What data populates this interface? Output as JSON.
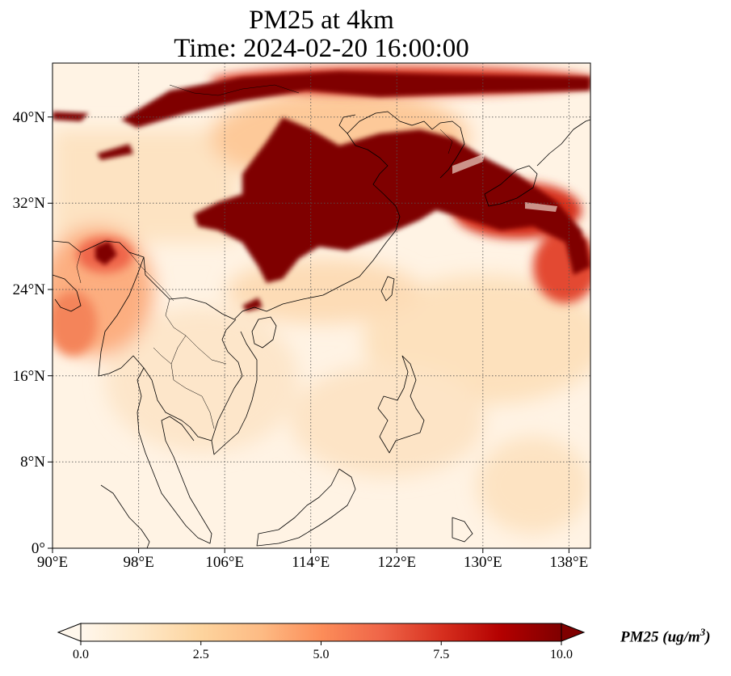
{
  "title": {
    "line1": "PM25 at 4km",
    "line2": "Time: 2024-02-20 16:00:00"
  },
  "map": {
    "lon_range": [
      90,
      140
    ],
    "lat_range": [
      0,
      45
    ],
    "lon_ticks": [
      "90°E",
      "98°E",
      "106°E",
      "114°E",
      "122°E",
      "130°E",
      "138°E"
    ],
    "lat_ticks": [
      "0°",
      "8°N",
      "16°N",
      "24°N",
      "32°N",
      "40°N"
    ],
    "gridlines": true,
    "colormap": "OrRd"
  },
  "colorbar": {
    "label": "PM25 (ug/m",
    "label_sup": "3",
    "label_close": ")",
    "ticks": [
      "0.0",
      "2.5",
      "5.0",
      "7.5",
      "10.0"
    ],
    "range": [
      0,
      10
    ],
    "extend": "both",
    "colors": [
      "#fff7ec",
      "#fee8c8",
      "#fdd49e",
      "#fdbb84",
      "#fc8d59",
      "#ef6548",
      "#d7301f",
      "#b30000",
      "#7f0000"
    ]
  }
}
